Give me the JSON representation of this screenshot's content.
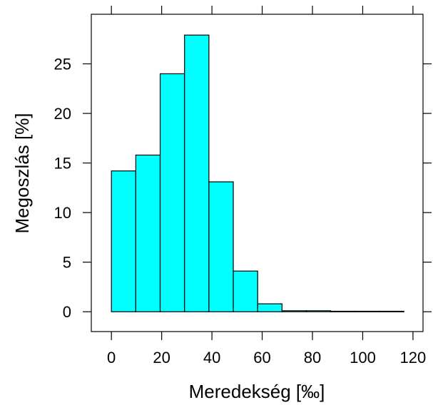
{
  "chart_data": {
    "type": "bar",
    "title": "",
    "xlabel": "Meredekség [‰]",
    "ylabel": "Megoszlás [%]",
    "xlim": [
      -8,
      124
    ],
    "ylim": [
      -2,
      30
    ],
    "x_ticks": [
      0,
      20,
      40,
      60,
      80,
      100,
      120
    ],
    "y_ticks": [
      0,
      5,
      10,
      15,
      20,
      25
    ],
    "bin_edges": [
      0,
      9.7,
      19.4,
      29.1,
      38.8,
      48.5,
      58.2,
      67.9,
      77.6,
      87.3,
      97.0,
      106.7,
      116.4
    ],
    "values": [
      14.2,
      15.8,
      24.0,
      27.9,
      13.1,
      4.1,
      0.8,
      0.1,
      0.1,
      0.05,
      0.05,
      0.05
    ],
    "bar_color": "#00ffff",
    "grid": false,
    "legend": "none"
  }
}
